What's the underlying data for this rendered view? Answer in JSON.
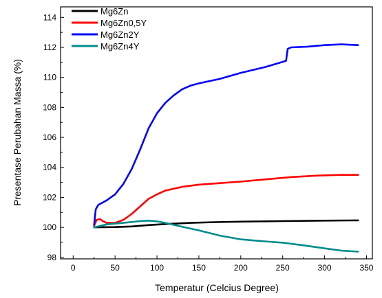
{
  "chart_data": {
    "type": "line",
    "title": "",
    "xlabel": "Temperatur (Celcius Degree)",
    "ylabel": "Presentase Perubahan Massa (%)",
    "xlim": [
      -15,
      357
    ],
    "ylim": [
      97.9,
      114.7
    ],
    "xticks": [
      0,
      50,
      100,
      150,
      200,
      250,
      300,
      350
    ],
    "yticks": [
      98,
      100,
      102,
      104,
      106,
      108,
      110,
      112,
      114
    ],
    "legend": "top-left",
    "grid": false,
    "series": [
      {
        "name": "Mg6Zn",
        "color": "#000000",
        "points": [
          [
            25,
            100.0
          ],
          [
            50,
            100.02
          ],
          [
            70,
            100.06
          ],
          [
            90,
            100.15
          ],
          [
            110,
            100.22
          ],
          [
            140,
            100.3
          ],
          [
            170,
            100.35
          ],
          [
            200,
            100.38
          ],
          [
            250,
            100.42
          ],
          [
            300,
            100.45
          ],
          [
            340,
            100.47
          ]
        ]
      },
      {
        "name": "Mg6Zn0,5Y",
        "color": "#ff0000",
        "points": [
          [
            25,
            100.1
          ],
          [
            28,
            100.5
          ],
          [
            32,
            100.55
          ],
          [
            36,
            100.4
          ],
          [
            40,
            100.3
          ],
          [
            50,
            100.3
          ],
          [
            60,
            100.5
          ],
          [
            70,
            100.9
          ],
          [
            80,
            101.4
          ],
          [
            90,
            101.9
          ],
          [
            100,
            102.2
          ],
          [
            110,
            102.45
          ],
          [
            130,
            102.7
          ],
          [
            150,
            102.85
          ],
          [
            175,
            102.95
          ],
          [
            200,
            103.05
          ],
          [
            230,
            103.2
          ],
          [
            260,
            103.35
          ],
          [
            290,
            103.45
          ],
          [
            320,
            103.5
          ],
          [
            340,
            103.5
          ]
        ]
      },
      {
        "name": "Mg6Zn2Y",
        "color": "#0000ff",
        "points": [
          [
            25,
            100.15
          ],
          [
            27,
            101.2
          ],
          [
            30,
            101.5
          ],
          [
            35,
            101.65
          ],
          [
            40,
            101.8
          ],
          [
            50,
            102.2
          ],
          [
            60,
            102.9
          ],
          [
            70,
            103.9
          ],
          [
            80,
            105.2
          ],
          [
            90,
            106.6
          ],
          [
            100,
            107.6
          ],
          [
            110,
            108.3
          ],
          [
            120,
            108.8
          ],
          [
            130,
            109.2
          ],
          [
            140,
            109.45
          ],
          [
            150,
            109.6
          ],
          [
            175,
            109.9
          ],
          [
            200,
            110.3
          ],
          [
            230,
            110.7
          ],
          [
            254,
            111.1
          ],
          [
            256,
            111.9
          ],
          [
            260,
            112.0
          ],
          [
            280,
            112.05
          ],
          [
            300,
            112.15
          ],
          [
            320,
            112.2
          ],
          [
            340,
            112.15
          ]
        ]
      },
      {
        "name": "Mg6Zn4Y",
        "color": "#008b8b",
        "points": [
          [
            25,
            100.0
          ],
          [
            40,
            100.2
          ],
          [
            60,
            100.3
          ],
          [
            80,
            100.42
          ],
          [
            90,
            100.45
          ],
          [
            100,
            100.4
          ],
          [
            110,
            100.3
          ],
          [
            125,
            100.1
          ],
          [
            150,
            99.8
          ],
          [
            175,
            99.45
          ],
          [
            200,
            99.2
          ],
          [
            225,
            99.08
          ],
          [
            250,
            98.98
          ],
          [
            275,
            98.8
          ],
          [
            300,
            98.6
          ],
          [
            320,
            98.45
          ],
          [
            340,
            98.38
          ]
        ]
      }
    ]
  }
}
